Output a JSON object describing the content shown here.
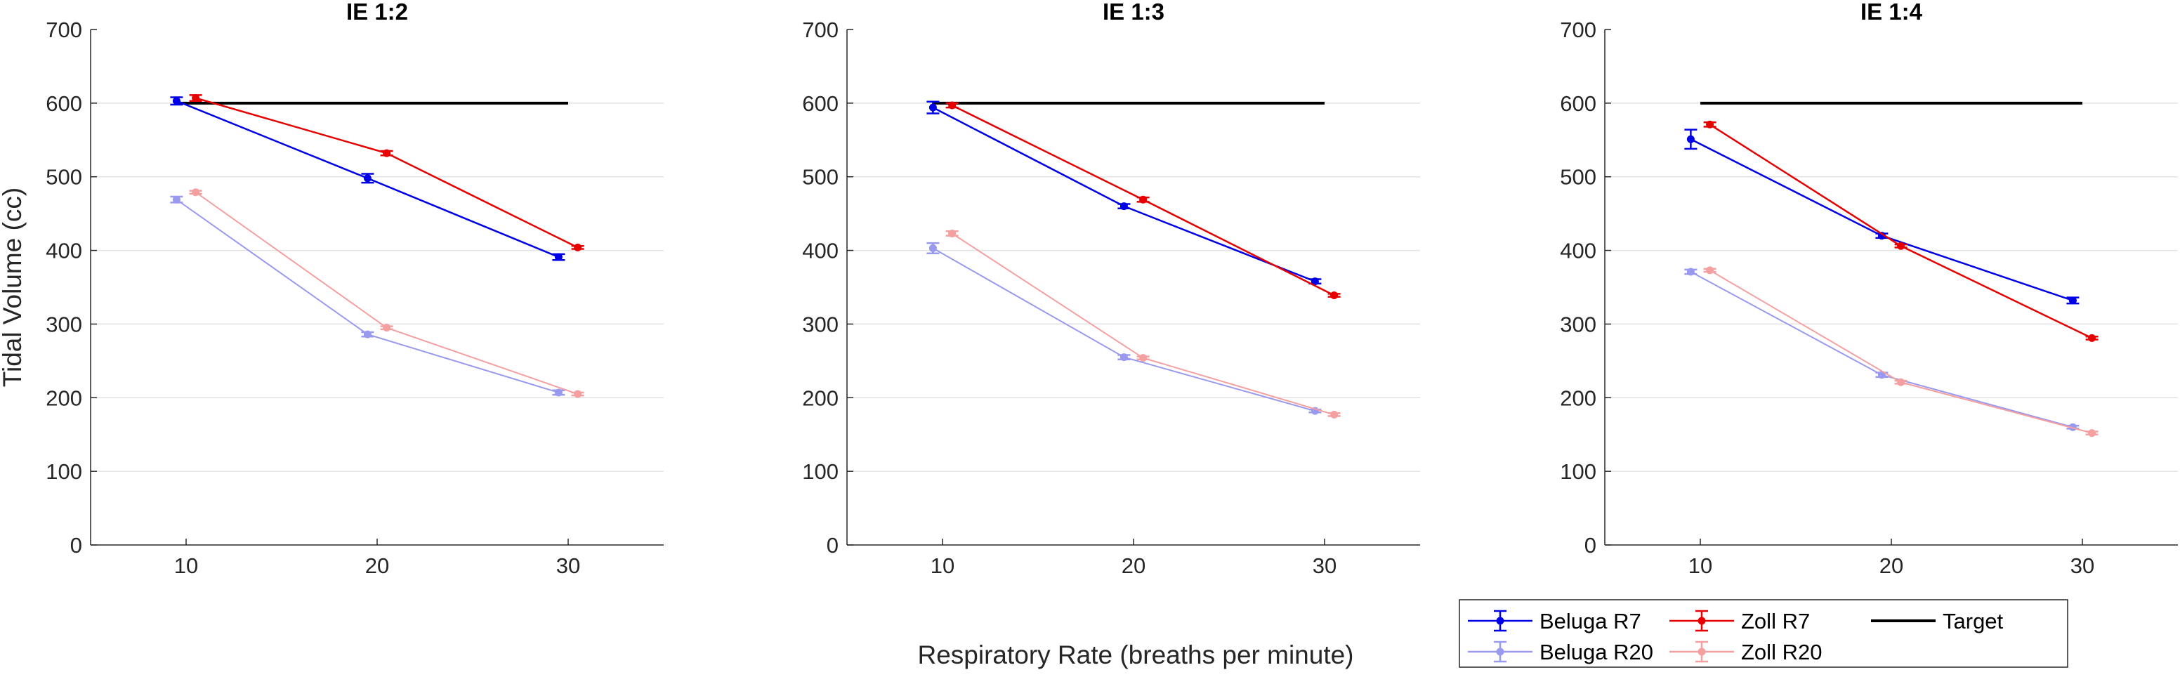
{
  "chart_data": {
    "type": "line",
    "ylabel": "Tidal Volume (cc)",
    "xlabel": "Respiratory Rate (breaths per minute)",
    "ylim": [
      0,
      700
    ],
    "yticks": [
      0,
      100,
      200,
      300,
      400,
      500,
      600,
      700
    ],
    "xticks": [
      10,
      20,
      30
    ],
    "xlim": [
      5,
      35
    ],
    "grid": "horizontal",
    "legend_placement": "bottom-right",
    "legend": [
      "Beluga R7",
      "Zoll R7",
      "Target",
      "Beluga R20",
      "Zoll R20"
    ],
    "colors": {
      "beluga_r7": "#0000e6",
      "zoll_r7": "#e60000",
      "beluga_r20": "#9999f0",
      "zoll_r20": "#f5a0a0",
      "target": "#000000"
    },
    "panels": [
      {
        "title": "IE 1:2",
        "series": [
          {
            "name": "Beluga R7",
            "x": [
              9.5,
              19.5,
              29.5
            ],
            "y": [
              603,
              498,
              391
            ],
            "err": [
              5,
              6,
              4
            ]
          },
          {
            "name": "Zoll R7",
            "x": [
              10.5,
              20.5,
              30.5
            ],
            "y": [
              607,
              532,
              404
            ],
            "err": [
              4,
              3,
              2
            ]
          },
          {
            "name": "Beluga R20",
            "x": [
              9.5,
              19.5,
              29.5
            ],
            "y": [
              469,
              286,
              207
            ],
            "err": [
              4,
              3,
              3
            ]
          },
          {
            "name": "Zoll R20",
            "x": [
              10.5,
              20.5,
              30.5
            ],
            "y": [
              479,
              295,
              205
            ],
            "err": [
              2,
              2,
              2
            ]
          },
          {
            "name": "Target",
            "x": [
              9.5,
              30
            ],
            "y": [
              600,
              600
            ]
          }
        ]
      },
      {
        "title": "IE 1:3",
        "series": [
          {
            "name": "Beluga R7",
            "x": [
              9.5,
              19.5,
              29.5
            ],
            "y": [
              594,
              460,
              358
            ],
            "err": [
              8,
              3,
              3
            ]
          },
          {
            "name": "Zoll R7",
            "x": [
              10.5,
              20.5,
              30.5
            ],
            "y": [
              597,
              469,
              339
            ],
            "err": [
              3,
              3,
              2
            ]
          },
          {
            "name": "Beluga R20",
            "x": [
              9.5,
              19.5,
              29.5
            ],
            "y": [
              403,
              255,
              182
            ],
            "err": [
              7,
              3,
              2
            ]
          },
          {
            "name": "Zoll R20",
            "x": [
              10.5,
              20.5,
              30.5
            ],
            "y": [
              423,
              254,
              177
            ],
            "err": [
              3,
              2,
              2
            ]
          },
          {
            "name": "Target",
            "x": [
              9.5,
              30
            ],
            "y": [
              600,
              600
            ]
          }
        ]
      },
      {
        "title": "IE 1:4",
        "series": [
          {
            "name": "Beluga R7",
            "x": [
              9.5,
              19.5,
              29.5
            ],
            "y": [
              551,
              420,
              332
            ],
            "err": [
              13,
              3,
              4
            ]
          },
          {
            "name": "Zoll R7",
            "x": [
              10.5,
              20.5,
              30.5
            ],
            "y": [
              571,
              406,
              281
            ],
            "err": [
              3,
              2,
              2
            ]
          },
          {
            "name": "Beluga R20",
            "x": [
              9.5,
              19.5,
              29.5
            ],
            "y": [
              371,
              231,
              160
            ],
            "err": [
              3,
              3,
              2
            ]
          },
          {
            "name": "Zoll R20",
            "x": [
              10.5,
              20.5,
              30.5
            ],
            "y": [
              373,
              221,
              152
            ],
            "err": [
              2,
              2,
              2
            ]
          },
          {
            "name": "Target",
            "x": [
              10,
              30
            ],
            "y": [
              600,
              600
            ]
          }
        ]
      }
    ]
  }
}
